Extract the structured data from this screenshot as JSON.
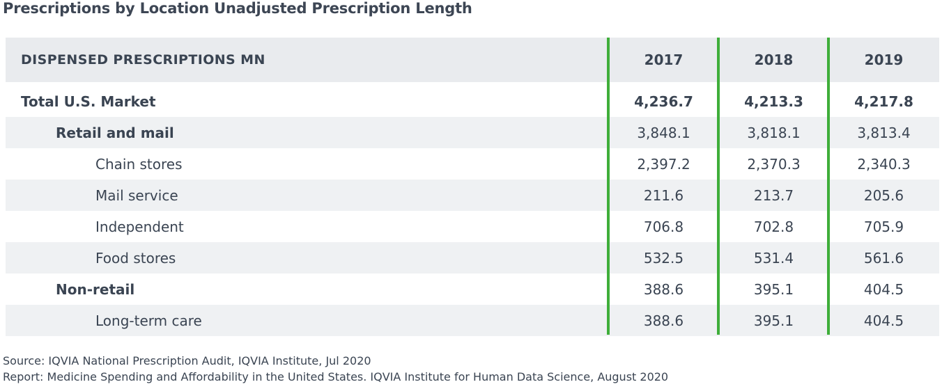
{
  "title": "Prescriptions by Location Unadjusted Prescription Length",
  "table": {
    "header_label": "DISPENSED PRESCRIPTIONS MN",
    "years": [
      "2017",
      "2018",
      "2019"
    ],
    "rows": [
      {
        "label": "Total U.S. Market",
        "values": [
          "4,236.7",
          "4,213.3",
          "4,217.8"
        ]
      },
      {
        "label": "Retail and mail",
        "values": [
          "3,848.1",
          "3,818.1",
          "3,813.4"
        ]
      },
      {
        "label": "Chain stores",
        "values": [
          "2,397.2",
          "2,370.3",
          "2,340.3"
        ]
      },
      {
        "label": "Mail service",
        "values": [
          "211.6",
          "213.7",
          "205.6"
        ]
      },
      {
        "label": "Independent",
        "values": [
          "706.8",
          "702.8",
          "705.9"
        ]
      },
      {
        "label": "Food stores",
        "values": [
          "532.5",
          "531.4",
          "561.6"
        ]
      },
      {
        "label": "Non-retail",
        "values": [
          "388.6",
          "395.1",
          "404.5"
        ]
      },
      {
        "label": "Long-term care",
        "values": [
          "388.6",
          "395.1",
          "404.5"
        ]
      }
    ]
  },
  "footer": {
    "source": "Source: IQVIA National Prescription Audit, IQVIA Institute, Jul 2020",
    "report": "Report: Medicine Spending and Affordability in the United States. IQVIA Institute for Human Data Science, August 2020"
  },
  "colors": {
    "divider": "#3fae3a",
    "header_bg": "#e9ebee",
    "stripe_bg": "#eff1f3",
    "text": "#3a4452"
  }
}
